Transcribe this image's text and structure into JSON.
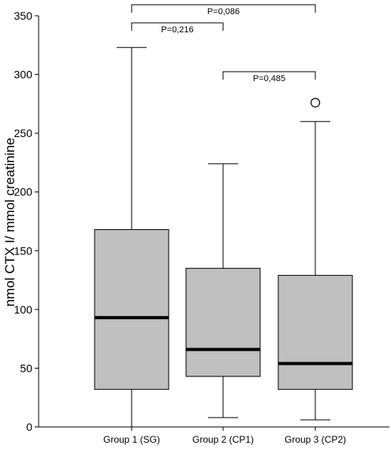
{
  "chart_data": {
    "type": "boxplot",
    "title": "",
    "xlabel": "",
    "ylabel": "nmol CTX I/ mmol creatinine",
    "ylim": [
      0,
      350
    ],
    "y_ticks": [
      0,
      50,
      100,
      150,
      200,
      250,
      300,
      350
    ],
    "grid": false,
    "box_color": "#c0c0c0",
    "median_color": "#000000",
    "categories": [
      "Group 1 (SG)",
      "Group 2 (CP1)",
      "Group 3 (CP2)"
    ],
    "boxes": [
      {
        "category": "Group 1 (SG)",
        "min": 0,
        "q1": 32,
        "median": 93,
        "q3": 168,
        "max": 323,
        "outliers": []
      },
      {
        "category": "Group 2 (CP1)",
        "min": 8,
        "q1": 43,
        "median": 66,
        "q3": 135,
        "max": 224,
        "outliers": []
      },
      {
        "category": "Group 3 (CP2)",
        "min": 6,
        "q1": 32,
        "median": 54,
        "q3": 129,
        "max": 260,
        "outliers": [
          276
        ]
      }
    ],
    "comparisons": [
      {
        "from": 0,
        "to": 2,
        "label": "P=0,086"
      },
      {
        "from": 0,
        "to": 1,
        "label": "P=0,216"
      },
      {
        "from": 1,
        "to": 2,
        "label": "P=0,485"
      }
    ]
  }
}
